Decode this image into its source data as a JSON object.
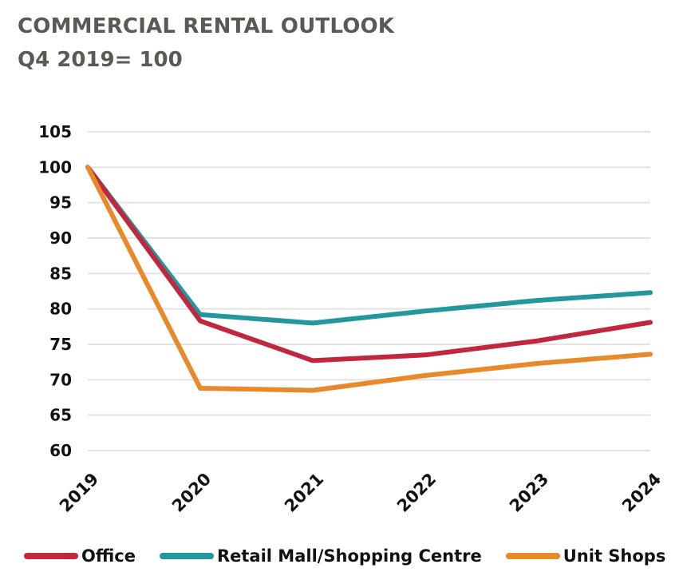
{
  "title": "COMMERCIAL RENTAL OUTLOOK",
  "subtitle": "Q4 2019= 100",
  "chart_data": {
    "type": "line",
    "x": [
      "2019",
      "2020",
      "2021",
      "2022",
      "2023",
      "2024"
    ],
    "ylim": [
      60,
      105
    ],
    "yticks": [
      105,
      100,
      95,
      90,
      85,
      80,
      75,
      70,
      65,
      60
    ],
    "grid": true,
    "legend_position": "bottom",
    "series": [
      {
        "name": "Office",
        "color": "#c1273f",
        "values": [
          100,
          78.3,
          72.7,
          73.5,
          75.5,
          78.1
        ]
      },
      {
        "name": "Retail Mall/Shopping Centre",
        "color": "#22979e",
        "values": [
          100,
          79.2,
          78.0,
          79.7,
          81.2,
          82.3
        ]
      },
      {
        "name": "Unit Shops",
        "color": "#e8892a",
        "values": [
          100,
          68.8,
          68.5,
          70.6,
          72.3,
          73.6
        ]
      }
    ]
  }
}
